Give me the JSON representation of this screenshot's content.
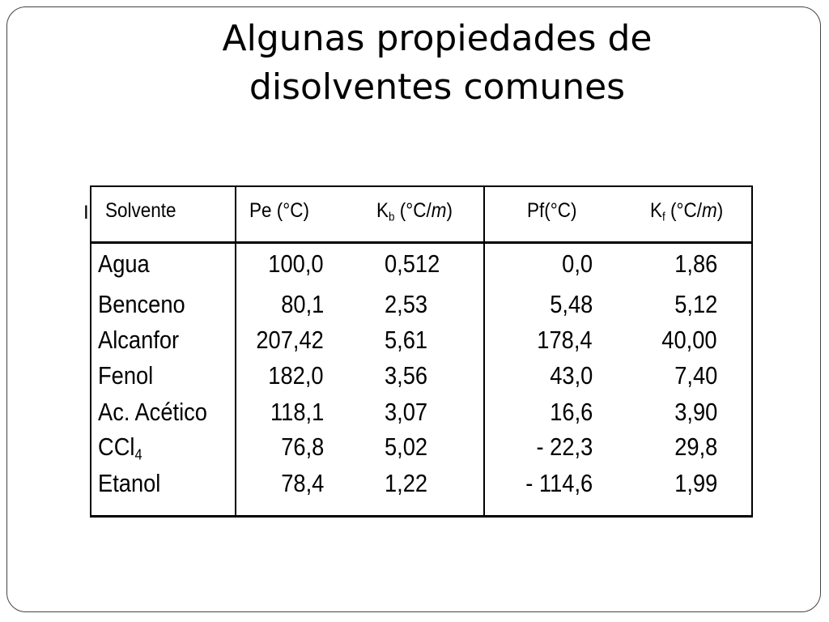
{
  "slide": {
    "title": "Algunas propiedades de disolventes comunes",
    "table": {
      "marker": "I",
      "header": [
        {
          "text": "Solvente"
        },
        {
          "text": "Pe (°C)"
        },
        {
          "symbol": "K",
          "subscript": "b",
          "unit_open": " (°C/",
          "unit_italic": "m",
          "unit_close": ")"
        },
        {
          "text": "Pf(°C)"
        },
        {
          "symbol": "K",
          "subscript": "f",
          "unit_open": " (°C/",
          "unit_italic": "m",
          "unit_close": ")"
        }
      ],
      "rows": [
        [
          {
            "text": "Agua"
          },
          "100,0",
          "0,512",
          "0,0",
          "1,86"
        ],
        [
          {
            "text": "Benceno"
          },
          "80,1",
          "2,53",
          "5,48",
          "5,12"
        ],
        [
          {
            "text": "Alcanfor"
          },
          "207,42",
          "5,61",
          "178,4",
          "40,00"
        ],
        [
          {
            "text": "Fenol"
          },
          "182,0",
          "3,56",
          "43,0",
          "7,40"
        ],
        [
          {
            "text": "Ac. Acético"
          },
          "118,1",
          "3,07",
          "16,6",
          "3,90"
        ],
        [
          {
            "text": "CCl",
            "subscript": "4"
          },
          "76,8",
          "5,02",
          "- 22,3",
          "29,8"
        ],
        [
          {
            "text": "Etanol"
          },
          "78,4",
          "1,22",
          "- 114,6",
          "1,99"
        ]
      ]
    }
  }
}
